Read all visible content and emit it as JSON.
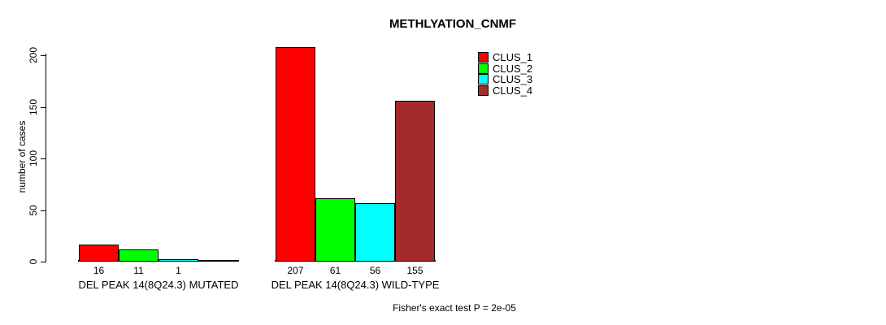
{
  "chart_data": {
    "type": "bar",
    "title": "METHLYATION_CNMF",
    "ylabel": "number of cases",
    "xlabel": "",
    "ylim": [
      0,
      210
    ],
    "yticks": [
      0,
      50,
      100,
      150,
      200
    ],
    "grid": false,
    "legend_position": "top-right",
    "categories": [
      "DEL PEAK 14(8Q24.3) MUTATED",
      "DEL PEAK 14(8Q24.3) WILD-TYPE"
    ],
    "series": [
      {
        "name": "CLUS_1",
        "color": "#FF0000",
        "values": [
          16,
          207
        ]
      },
      {
        "name": "CLUS_2",
        "color": "#00FF00",
        "values": [
          11,
          61
        ]
      },
      {
        "name": "CLUS_3",
        "color": "#00FFFF",
        "values": [
          1,
          56
        ]
      },
      {
        "name": "CLUS_4",
        "color": "#A52A2A",
        "values": [
          0,
          155
        ]
      }
    ],
    "bar_value_labels": [
      [
        "16",
        "11",
        "1",
        ""
      ],
      [
        "207",
        "61",
        "56",
        "155"
      ]
    ],
    "annotation": "Fisher's exact test P = 2e-05"
  }
}
